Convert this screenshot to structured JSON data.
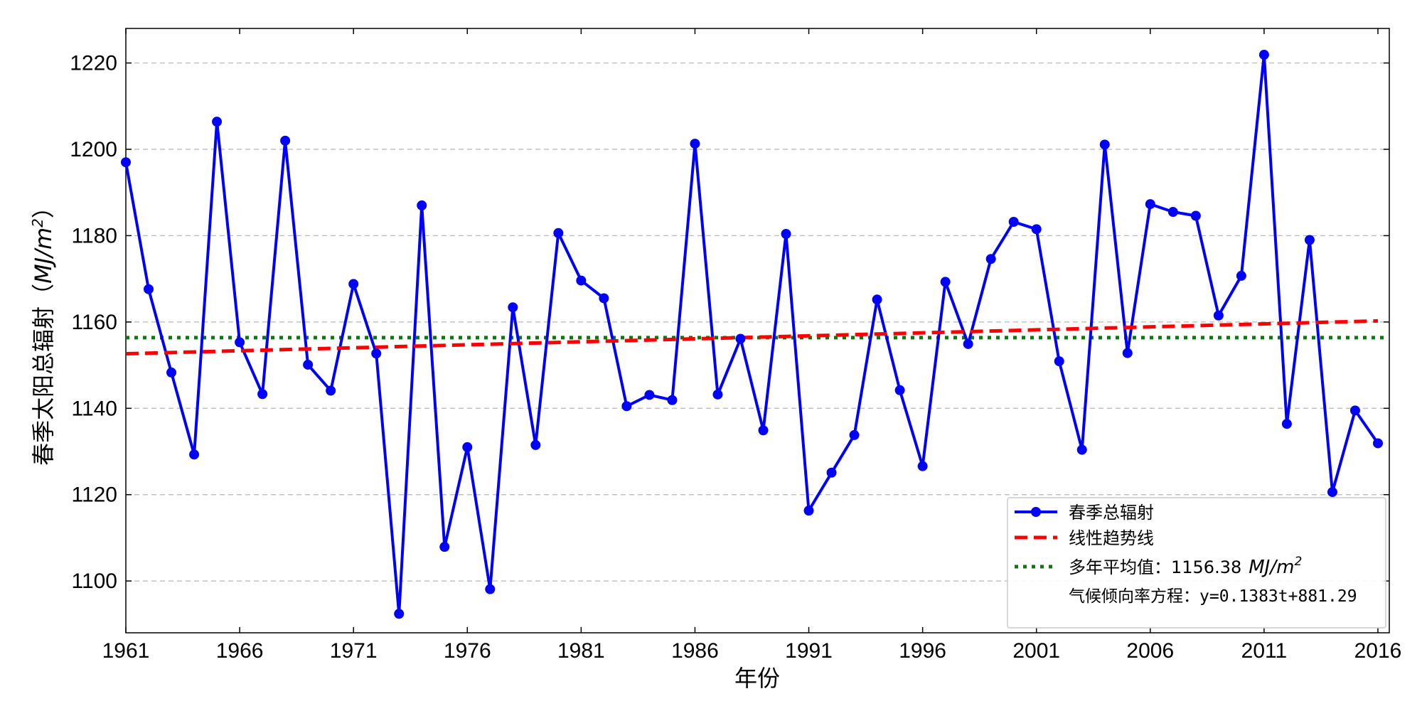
{
  "chart_data": {
    "type": "line",
    "xlabel": "年份",
    "ylabel": "春季太阳总辐射",
    "ylabel_unit_prefix": "（",
    "ylabel_unit": "MJ/m",
    "ylabel_unit_exp": "2",
    "ylabel_unit_suffix": "）",
    "xlim": [
      1961,
      2016.5
    ],
    "ylim": [
      1088,
      1228
    ],
    "xticks": [
      "1961",
      "1966",
      "1971",
      "1976",
      "1981",
      "1986",
      "1991",
      "1996",
      "2001",
      "2006",
      "2011",
      "2016"
    ],
    "yticks": [
      "1100",
      "1120",
      "1140",
      "1160",
      "1180",
      "1200",
      "1220"
    ],
    "grid": "horizontal dashed",
    "legend_position": "lower-right",
    "series": [
      {
        "name": "春季总辐射",
        "color": "#0000ff",
        "x": [
          1961,
          1962,
          1963,
          1964,
          1965,
          1966,
          1967,
          1968,
          1969,
          1970,
          1971,
          1972,
          1973,
          1974,
          1975,
          1976,
          1977,
          1978,
          1979,
          1980,
          1981,
          1982,
          1983,
          1984,
          1985,
          1986,
          1987,
          1988,
          1989,
          1990,
          1991,
          1992,
          1993,
          1994,
          1995,
          1996,
          1997,
          1998,
          1999,
          2000,
          2001,
          2002,
          2003,
          2004,
          2005,
          2006,
          2007,
          2008,
          2009,
          2010,
          2011,
          2012,
          2013,
          2014,
          2015,
          2016
        ],
        "values": [
          1197.0,
          1167.6,
          1148.3,
          1129.3,
          1206.4,
          1155.3,
          1143.3,
          1202.0,
          1150.1,
          1144.1,
          1168.8,
          1152.7,
          1092.4,
          1187.0,
          1107.9,
          1131.0,
          1098.1,
          1163.4,
          1131.5,
          1180.6,
          1169.6,
          1165.5,
          1140.5,
          1143.1,
          1141.9,
          1201.3,
          1143.2,
          1156.1,
          1134.9,
          1180.4,
          1116.3,
          1125.1,
          1133.8,
          1165.2,
          1144.2,
          1126.6,
          1169.3,
          1154.9,
          1174.6,
          1183.2,
          1181.5,
          1150.9,
          1130.4,
          1201.1,
          1152.8,
          1187.3,
          1185.5,
          1184.6,
          1161.5,
          1170.7,
          1221.9,
          1136.4,
          1179.0,
          1120.6,
          1139.5,
          1131.9
        ]
      },
      {
        "name": "线性趋势线",
        "color": "#ff0000",
        "x": [
          1961,
          2016
        ],
        "values": [
          1152.64,
          1160.25
        ]
      },
      {
        "name": "多年平均值：1156.38",
        "name_unit": "MJ/m",
        "name_unit_exp": "2",
        "color": "#008000",
        "x": [
          1961,
          2016.5
        ],
        "values": [
          1156.38,
          1156.38
        ]
      }
    ],
    "annotation": "气候倾向率方程：y=0.1383t+881.29"
  }
}
